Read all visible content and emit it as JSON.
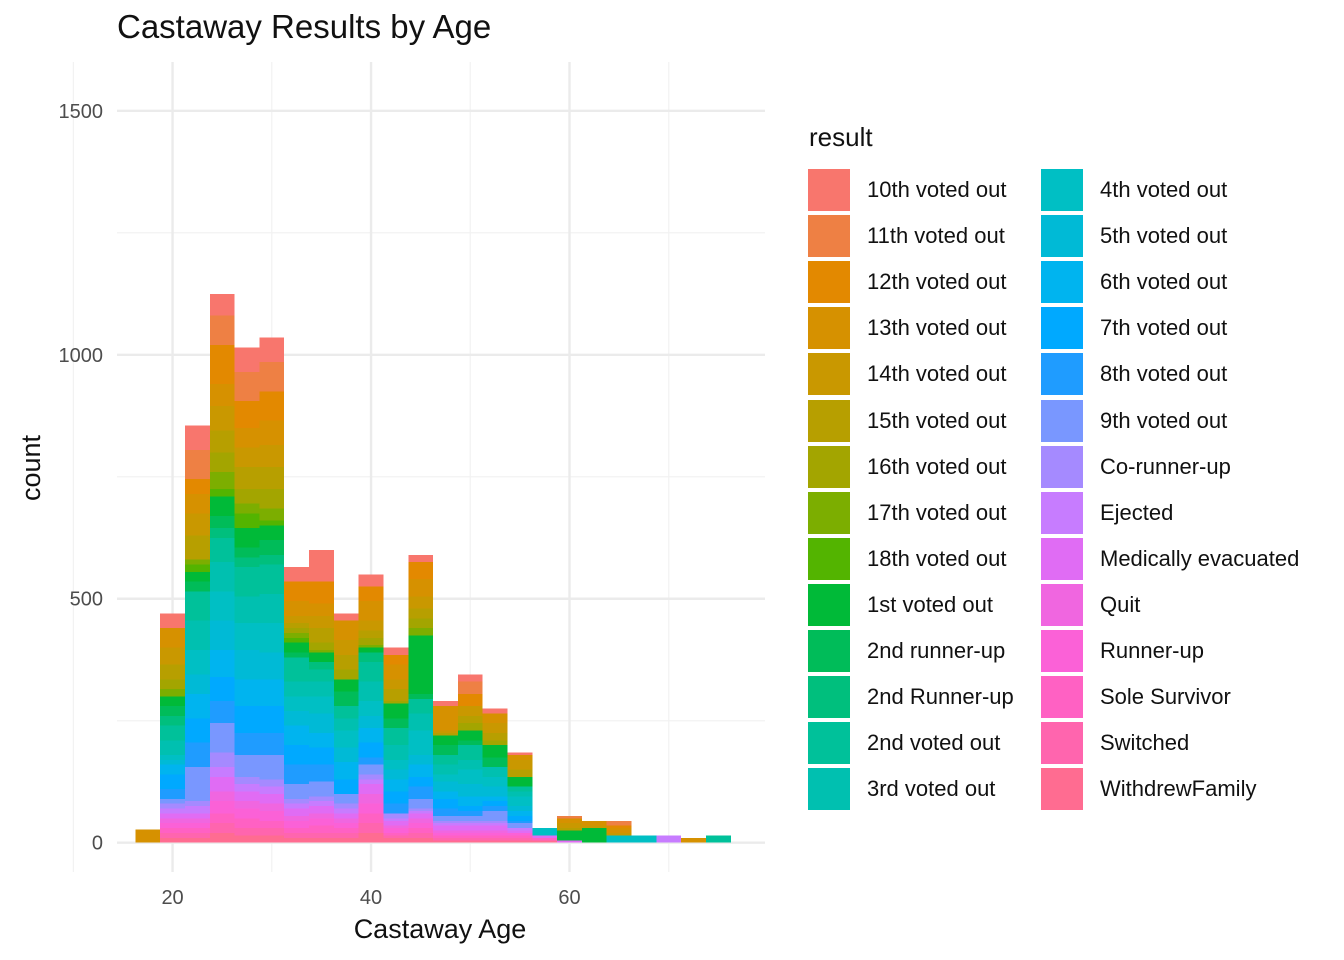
{
  "chart_data": {
    "type": "bar",
    "stacked": true,
    "title": "Castaway Results by Age",
    "xlabel": "Castaway Age",
    "ylabel": "count",
    "xlim": [
      14.4,
      79.7
    ],
    "ylim": [
      -60,
      1600
    ],
    "x_ticks": [
      20,
      40,
      60
    ],
    "y_ticks": [
      0,
      500,
      1000,
      1500
    ],
    "grid": true,
    "legend_title": "result",
    "legend_position": "right",
    "bin_width": 2.5,
    "bin_centers": [
      17.5,
      20,
      22.5,
      25,
      27.5,
      30,
      32.5,
      35,
      37.5,
      40,
      42.5,
      45,
      47.5,
      50,
      52.5,
      55,
      57.5,
      60,
      62.5,
      65,
      67.5,
      70,
      72.5,
      75
    ],
    "legend_entries": [
      {
        "name": "10th voted out",
        "color": "#F8766D"
      },
      {
        "name": "11th voted out",
        "color": "#EE8044"
      },
      {
        "name": "12th voted out",
        "color": "#E38900"
      },
      {
        "name": "13th voted out",
        "color": "#D69100"
      },
      {
        "name": "14th voted out",
        "color": "#C99800"
      },
      {
        "name": "15th voted out",
        "color": "#B79F00"
      },
      {
        "name": "16th voted out",
        "color": "#A3A500"
      },
      {
        "name": "17th voted out",
        "color": "#7CAE00"
      },
      {
        "name": "18th voted out",
        "color": "#53B400"
      },
      {
        "name": "1st voted out",
        "color": "#00BA38"
      },
      {
        "name": "2nd runner-up",
        "color": "#00BC59"
      },
      {
        "name": "2nd Runner-up",
        "color": "#00BF7D"
      },
      {
        "name": "2nd voted out",
        "color": "#00C19A"
      },
      {
        "name": "3rd voted out",
        "color": "#00C0B0"
      },
      {
        "name": "4th voted out",
        "color": "#00BFC4"
      },
      {
        "name": "5th voted out",
        "color": "#00BAD6"
      },
      {
        "name": "6th voted out",
        "color": "#00B4EF"
      },
      {
        "name": "7th voted out",
        "color": "#00A9FF"
      },
      {
        "name": "8th voted out",
        "color": "#1F9CFF"
      },
      {
        "name": "9th voted out",
        "color": "#7997FF"
      },
      {
        "name": "Co-runner-up",
        "color": "#A58AFF"
      },
      {
        "name": "Ejected",
        "color": "#C77CFF"
      },
      {
        "name": "Medically evacuated",
        "color": "#E06CF4"
      },
      {
        "name": "Quit",
        "color": "#F066E0"
      },
      {
        "name": "Runner-up",
        "color": "#FB61D7"
      },
      {
        "name": "Sole Survivor",
        "color": "#FF61C3"
      },
      {
        "name": "Switched",
        "color": "#FF65AE"
      },
      {
        "name": "WithdrewFamily",
        "color": "#FF6C91"
      }
    ],
    "series": [
      {
        "name": "10th voted out",
        "values": [
          0,
          30,
          50,
          45,
          50,
          50,
          30,
          65,
          15,
          25,
          15,
          15,
          10,
          15,
          10,
          5,
          0,
          0,
          0,
          0,
          0,
          0,
          0,
          0
        ]
      },
      {
        "name": "11th voted out",
        "values": [
          0,
          0,
          60,
          60,
          60,
          60,
          0,
          0,
          0,
          0,
          0,
          0,
          0,
          25,
          0,
          0,
          0,
          5,
          0,
          10,
          0,
          0,
          0,
          0
        ]
      },
      {
        "name": "12th voted out",
        "values": [
          0,
          0,
          30,
          80,
          55,
          60,
          40,
          45,
          0,
          30,
          20,
          35,
          0,
          25,
          0,
          0,
          0,
          0,
          0,
          5,
          0,
          0,
          0,
          0
        ]
      },
      {
        "name": "13th voted out",
        "values": [
          27,
          40,
          40,
          45,
          40,
          50,
          30,
          25,
          40,
          40,
          30,
          35,
          50,
          0,
          20,
          10,
          0,
          10,
          10,
          10,
          0,
          0,
          10,
          0
        ]
      },
      {
        "name": "14th voted out",
        "values": [
          0,
          35,
          45,
          50,
          40,
          45,
          15,
          25,
          30,
          20,
          20,
          25,
          5,
          20,
          20,
          20,
          0,
          10,
          5,
          5,
          0,
          0,
          0,
          0
        ]
      },
      {
        "name": "15th voted out",
        "values": [
          0,
          30,
          50,
          45,
          45,
          45,
          10,
          30,
          30,
          15,
          25,
          20,
          5,
          15,
          15,
          15,
          0,
          5,
          0,
          0,
          0,
          0,
          0,
          0
        ]
      },
      {
        "name": "16th voted out",
        "values": [
          0,
          20,
          0,
          40,
          30,
          40,
          10,
          15,
          20,
          15,
          5,
          20,
          0,
          15,
          10,
          0,
          0,
          0,
          0,
          0,
          0,
          0,
          0,
          0
        ]
      },
      {
        "name": "17th voted out",
        "values": [
          0,
          15,
          10,
          35,
          20,
          25,
          10,
          5,
          0,
          5,
          0,
          15,
          0,
          0,
          0,
          0,
          0,
          0,
          0,
          0,
          0,
          0,
          0,
          0
        ]
      },
      {
        "name": "18th voted out",
        "values": [
          0,
          0,
          15,
          15,
          30,
          10,
          10,
          0,
          0,
          0,
          0,
          0,
          0,
          0,
          0,
          0,
          0,
          0,
          0,
          0,
          0,
          0,
          0,
          0
        ]
      },
      {
        "name": "1st voted out",
        "values": [
          0,
          20,
          20,
          40,
          40,
          30,
          20,
          20,
          25,
          10,
          30,
          120,
          20,
          20,
          25,
          20,
          0,
          20,
          30,
          0,
          0,
          0,
          0,
          0
        ]
      },
      {
        "name": "2nd runner-up",
        "values": [
          0,
          20,
          20,
          25,
          20,
          30,
          10,
          0,
          30,
          0,
          20,
          10,
          20,
          10,
          20,
          0,
          0,
          0,
          0,
          0,
          0,
          0,
          0,
          0
        ]
      },
      {
        "name": "2nd Runner-up",
        "values": [
          0,
          20,
          0,
          20,
          20,
          20,
          0,
          15,
          0,
          20,
          0,
          0,
          0,
          0,
          0,
          0,
          0,
          0,
          0,
          0,
          0,
          0,
          0,
          0
        ]
      },
      {
        "name": "2nd voted out",
        "values": [
          0,
          30,
          60,
          50,
          60,
          60,
          50,
          25,
          25,
          40,
          35,
          30,
          20,
          30,
          0,
          10,
          0,
          0,
          0,
          0,
          0,
          0,
          0,
          15
        ]
      },
      {
        "name": "3rd voted out",
        "values": [
          0,
          30,
          60,
          60,
          55,
          60,
          30,
          30,
          25,
          40,
          30,
          35,
          20,
          20,
          20,
          10,
          0,
          0,
          0,
          0,
          0,
          0,
          0,
          0
        ]
      },
      {
        "name": "4th voted out",
        "values": [
          0,
          10,
          50,
          60,
          55,
          60,
          30,
          35,
          35,
          30,
          20,
          50,
          15,
          30,
          20,
          20,
          15,
          0,
          0,
          15,
          15,
          0,
          0,
          0
        ]
      },
      {
        "name": "5th voted out",
        "values": [
          0,
          10,
          40,
          60,
          60,
          55,
          30,
          40,
          30,
          25,
          20,
          20,
          20,
          25,
          20,
          10,
          0,
          0,
          0,
          0,
          0,
          0,
          0,
          0
        ]
      },
      {
        "name": "6th voted out",
        "values": [
          0,
          20,
          50,
          55,
          55,
          55,
          40,
          30,
          35,
          30,
          25,
          25,
          15,
          20,
          10,
          10,
          0,
          0,
          0,
          0,
          0,
          0,
          0,
          0
        ]
      },
      {
        "name": "7th voted out",
        "values": [
          0,
          30,
          50,
          50,
          55,
          55,
          40,
          35,
          30,
          30,
          25,
          20,
          20,
          10,
          10,
          10,
          0,
          0,
          0,
          0,
          0,
          0,
          0,
          0
        ]
      },
      {
        "name": "8th voted out",
        "values": [
          0,
          20,
          50,
          45,
          45,
          45,
          40,
          35,
          0,
          15,
          20,
          25,
          15,
          10,
          10,
          5,
          0,
          0,
          0,
          0,
          0,
          0,
          0,
          0
        ]
      },
      {
        "name": "9th voted out",
        "values": [
          0,
          10,
          70,
          60,
          45,
          50,
          30,
          30,
          20,
          20,
          0,
          20,
          10,
          10,
          20,
          10,
          0,
          0,
          0,
          0,
          0,
          0,
          0,
          0
        ]
      },
      {
        "name": "Co-runner-up",
        "values": [
          0,
          10,
          10,
          30,
          15,
          15,
          10,
          10,
          10,
          10,
          10,
          5,
          5,
          5,
          5,
          0,
          0,
          0,
          0,
          0,
          0,
          0,
          0,
          0
        ]
      },
      {
        "name": "Ejected",
        "values": [
          0,
          10,
          15,
          20,
          15,
          15,
          10,
          10,
          10,
          10,
          5,
          5,
          5,
          5,
          5,
          5,
          0,
          0,
          0,
          0,
          0,
          15,
          0,
          0
        ]
      },
      {
        "name": "Medically evacuated",
        "values": [
          0,
          10,
          10,
          30,
          20,
          20,
          15,
          15,
          10,
          20,
          10,
          10,
          10,
          10,
          10,
          5,
          5,
          5,
          0,
          0,
          0,
          0,
          0,
          0
        ]
      },
      {
        "name": "Quit",
        "values": [
          0,
          10,
          10,
          20,
          15,
          15,
          10,
          10,
          10,
          20,
          5,
          10,
          5,
          5,
          5,
          0,
          0,
          0,
          0,
          0,
          0,
          0,
          0,
          0
        ]
      },
      {
        "name": "Runner-up",
        "values": [
          0,
          10,
          10,
          25,
          20,
          20,
          15,
          15,
          10,
          20,
          10,
          10,
          5,
          5,
          5,
          5,
          0,
          0,
          0,
          0,
          0,
          0,
          0,
          0
        ]
      },
      {
        "name": "Sole Survivor",
        "values": [
          0,
          10,
          10,
          20,
          20,
          15,
          10,
          15,
          10,
          20,
          5,
          10,
          5,
          5,
          5,
          5,
          5,
          0,
          0,
          0,
          0,
          0,
          0,
          0
        ]
      },
      {
        "name": "Switched",
        "values": [
          0,
          10,
          10,
          20,
          15,
          15,
          10,
          10,
          10,
          20,
          5,
          10,
          5,
          5,
          5,
          5,
          0,
          0,
          0,
          0,
          0,
          0,
          0,
          0
        ]
      },
      {
        "name": "WithdrewFamily",
        "values": [
          0,
          10,
          10,
          20,
          15,
          15,
          10,
          10,
          10,
          20,
          10,
          10,
          5,
          5,
          5,
          5,
          5,
          0,
          0,
          0,
          0,
          0,
          0,
          0
        ]
      }
    ]
  }
}
